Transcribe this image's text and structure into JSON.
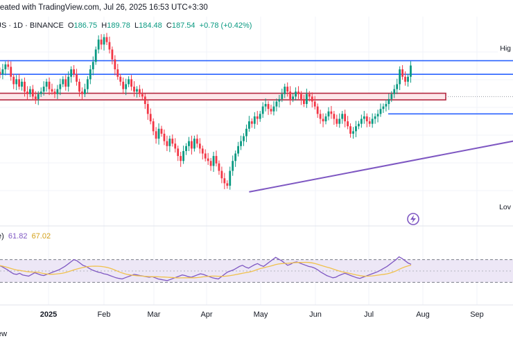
{
  "header": {
    "title": "reated with TradingView.com, Jul 26, 2025 16:53 UTC+3:30",
    "symbol": "US · 1D · BINANCE",
    "open_label": "O",
    "open": "186.75",
    "high_label": "H",
    "high": "189.78",
    "low_label": "L",
    "low": "184.48",
    "close_label": "C",
    "close": "187.54",
    "change": "+0.78 (+0.42%)"
  },
  "labels": {
    "high": "Hig",
    "low": "Lov"
  },
  "rsi_legend": {
    "prefix": "e)",
    "rsi": "61.82",
    "ma": "67.02"
  },
  "footer": "ew",
  "colors": {
    "up": "#089981",
    "down": "#f23645",
    "hline": "#2962ff",
    "zone": "#b2263f",
    "trend": "#7e57c2",
    "rsi_line": "#7e57c2",
    "rsi_ma": "#f0c14b",
    "rsi_band": "#ede7f6"
  },
  "chart_data": {
    "type": "candlestick",
    "x_tick_labels": [
      "2025",
      "Feb",
      "Mar",
      "Apr",
      "May",
      "Jun",
      "Jul",
      "Aug",
      "Sep"
    ],
    "price_range": [
      125,
      200
    ],
    "support_resistance": [
      {
        "name": "resistance-1",
        "price": 189.5
      },
      {
        "name": "resistance-2",
        "price": 184.0
      },
      {
        "name": "zone-top",
        "price": 175.5
      },
      {
        "name": "zone-bottom",
        "price": 174.5
      },
      {
        "name": "support",
        "price": 168.0
      }
    ],
    "trendline": {
      "from": {
        "day": 92,
        "price": 136.5
      },
      "to": {
        "day": 232,
        "price": 169.5
      }
    },
    "candles_close": [
      185,
      184,
      186,
      188,
      187,
      183,
      180,
      182,
      179,
      181,
      177,
      176,
      178,
      175,
      174,
      176,
      177,
      179,
      181,
      178,
      177,
      176,
      178,
      180,
      182,
      179,
      183,
      186,
      184,
      181,
      177,
      176,
      178,
      182,
      186,
      189,
      194,
      198,
      196,
      199,
      197,
      194,
      190,
      186,
      183,
      181,
      178,
      180,
      182,
      179,
      177,
      178,
      176,
      175,
      172,
      168,
      165,
      161,
      158,
      162,
      160,
      157,
      155,
      158,
      156,
      154,
      151,
      149,
      153,
      155,
      157,
      154,
      158,
      156,
      154,
      152,
      150,
      149,
      147,
      151,
      148,
      145,
      142,
      140,
      139,
      145,
      149,
      152,
      155,
      157,
      159,
      162,
      165,
      164,
      167,
      166,
      168,
      171,
      172,
      170,
      169,
      171,
      173,
      174,
      176,
      179,
      177,
      174,
      175,
      177,
      176,
      174,
      172,
      176,
      175,
      173,
      171,
      168,
      166,
      165,
      167,
      169,
      168,
      166,
      164,
      166,
      168,
      165,
      163,
      160,
      161,
      163,
      164,
      166,
      167,
      165,
      164,
      166,
      167,
      168,
      170,
      171,
      172,
      174,
      176,
      178,
      180,
      186,
      183,
      181,
      183,
      187.54
    ],
    "rsi": {
      "range": [
        0,
        100
      ],
      "bands": [
        30,
        70
      ],
      "rsi_last": 61.82,
      "ma_last": 67.02,
      "values": [
        60,
        58,
        55,
        52,
        48,
        45,
        44,
        46,
        43,
        42,
        41,
        44,
        47,
        45,
        43,
        42,
        44,
        46,
        48,
        50,
        52,
        55,
        58,
        62,
        66,
        70,
        68,
        64,
        60,
        58,
        55,
        52,
        50,
        48,
        47,
        45,
        44,
        42,
        40,
        38,
        37,
        36,
        38,
        40,
        42,
        44,
        43,
        42,
        41,
        40,
        39,
        40,
        38,
        36,
        35,
        34,
        33,
        35,
        37,
        39,
        41,
        43,
        42,
        40,
        39,
        41,
        43,
        45,
        44,
        42,
        40,
        38,
        37,
        36,
        40,
        44,
        48,
        50,
        52,
        55,
        58,
        60,
        57,
        55,
        58,
        61,
        63,
        60,
        58,
        62,
        66,
        70,
        74,
        71,
        68,
        64,
        60,
        62,
        65,
        66,
        64,
        62,
        60,
        58,
        57,
        55,
        52,
        48,
        45,
        42,
        40,
        38,
        39,
        42,
        44,
        46,
        44,
        42,
        40,
        38,
        37,
        39,
        41,
        43,
        45,
        47,
        49,
        52,
        55,
        58,
        62,
        66,
        70,
        75,
        72,
        68,
        64,
        61.82
      ]
    }
  }
}
